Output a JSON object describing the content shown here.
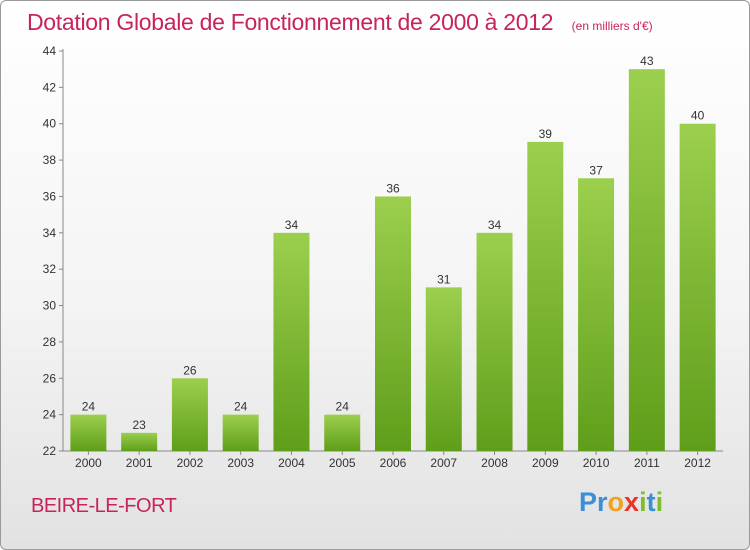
{
  "header": {
    "title": "Dotation Globale de Fonctionnement de 2000 à 2012",
    "unit": "(en milliers d'€)"
  },
  "footer": {
    "place": "BEIRE-LE-FORT",
    "logo_letters": [
      {
        "char": "P",
        "color": "#3a8fd6"
      },
      {
        "char": "r",
        "color": "#3a8fd6"
      },
      {
        "char": "o",
        "color": "#f2a21b"
      },
      {
        "char": "x",
        "color": "#e8352a"
      },
      {
        "char": "i",
        "color": "#7cbf2b"
      },
      {
        "char": "t",
        "color": "#3a8fd6"
      },
      {
        "char": "i",
        "color": "#7cbf2b"
      }
    ]
  },
  "colors": {
    "bar_top": "#9ccf4e",
    "bar_bottom": "#5f9e1a",
    "accent": "#c8245a"
  },
  "chart_data": {
    "type": "bar",
    "title": "Dotation Globale de Fonctionnement de 2000 à 2012",
    "subtitle": "(en milliers d'€)",
    "xlabel": "",
    "ylabel": "",
    "categories": [
      "2000",
      "2001",
      "2002",
      "2003",
      "2004",
      "2005",
      "2006",
      "2007",
      "2008",
      "2009",
      "2010",
      "2011",
      "2012"
    ],
    "values": [
      24,
      23,
      26,
      24,
      34,
      24,
      36,
      31,
      34,
      39,
      37,
      43,
      40
    ],
    "ylim": [
      22,
      44
    ],
    "yticks": [
      22,
      24,
      26,
      28,
      30,
      32,
      34,
      36,
      38,
      40,
      42,
      44
    ],
    "grid": false,
    "legend": "none"
  }
}
